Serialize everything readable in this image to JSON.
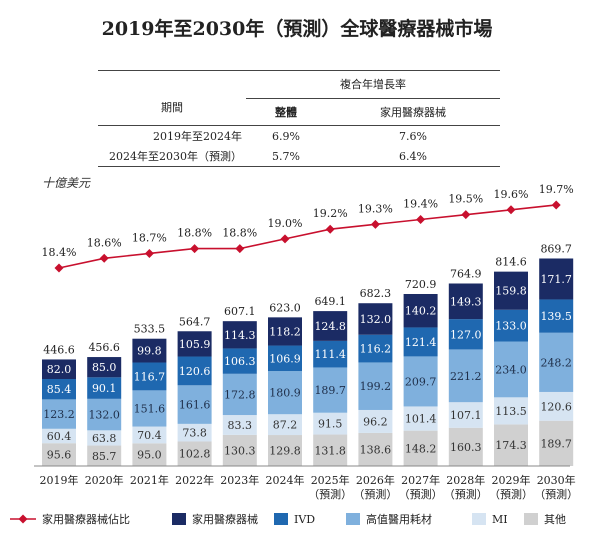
{
  "title": "2019年至2030年（預測）全球醫療器械市場",
  "cagr_table": {
    "period_header": "期間",
    "cagr_header": "複合年增長率",
    "col_overall": "整體",
    "col_home": "家用醫療器械",
    "rows": [
      {
        "period": "2019年至2024年",
        "overall": "6.9%",
        "home": "7.6%"
      },
      {
        "period": "2024年至2030年（預測）",
        "overall": "5.7%",
        "home": "6.4%"
      }
    ]
  },
  "chart_data": {
    "type": "bar",
    "stacked": true,
    "unit_label": "十億美元",
    "categories": [
      "2019年",
      "2020年",
      "2021年",
      "2022年",
      "2023年",
      "2024年",
      "2025年",
      "2026年",
      "2027年",
      "2028年",
      "2029年",
      "2030年"
    ],
    "category_sublabels": [
      "",
      "",
      "",
      "",
      "",
      "",
      "（預測）",
      "（預測）",
      "（預測）",
      "（預測）",
      "（預測）",
      "（預測）"
    ],
    "totals": [
      "446.6",
      "456.6",
      "533.5",
      "564.7",
      "607.1",
      "623.0",
      "649.1",
      "682.3",
      "720.9",
      "764.9",
      "814.6",
      "869.7"
    ],
    "series": [
      {
        "name": "其他",
        "color": "#d0d0d0",
        "label_color": "#333333",
        "values": [
          95.6,
          85.7,
          95.0,
          102.8,
          130.3,
          129.8,
          131.8,
          138.6,
          148.2,
          160.3,
          174.3,
          189.7
        ]
      },
      {
        "name": "MI",
        "color": "#d6e4f2",
        "label_color": "#333333",
        "values": [
          60.4,
          63.8,
          70.4,
          73.8,
          83.3,
          87.2,
          91.5,
          96.2,
          101.4,
          107.1,
          113.5,
          120.6
        ]
      },
      {
        "name": "高值醫用耗材",
        "color": "#7fb0dd",
        "label_color": "#1f2f4a",
        "values": [
          123.2,
          132.0,
          151.6,
          161.6,
          172.8,
          180.9,
          189.7,
          199.2,
          209.7,
          221.2,
          234.0,
          248.2
        ]
      },
      {
        "name": "IVD",
        "color": "#1f68b0",
        "label_color": "#ffffff",
        "values": [
          85.4,
          90.1,
          116.7,
          120.6,
          106.3,
          106.9,
          111.4,
          116.2,
          121.4,
          127.0,
          133.0,
          139.5
        ]
      },
      {
        "name": "家用醫療器械",
        "color": "#1b2b64",
        "label_color": "#ffffff",
        "values": [
          82.0,
          85.0,
          99.8,
          105.9,
          114.3,
          118.2,
          124.8,
          132.0,
          140.2,
          149.3,
          159.8,
          171.7
        ]
      }
    ],
    "line": {
      "name": "家用醫療器械佔比",
      "color": "#c8102e",
      "values": [
        18.4,
        18.6,
        18.7,
        18.8,
        18.8,
        19.0,
        19.2,
        19.3,
        19.4,
        19.5,
        19.6,
        19.7
      ],
      "labels": [
        "18.4%",
        "18.6%",
        "18.7%",
        "18.8%",
        "18.8%",
        "19.0%",
        "19.2%",
        "19.3%",
        "19.4%",
        "19.5%",
        "19.6%",
        "19.7%"
      ]
    },
    "legend_order": [
      "家用醫療器械佔比",
      "家用醫療器械",
      "IVD",
      "高值醫用耗材",
      "MI",
      "其他"
    ]
  }
}
